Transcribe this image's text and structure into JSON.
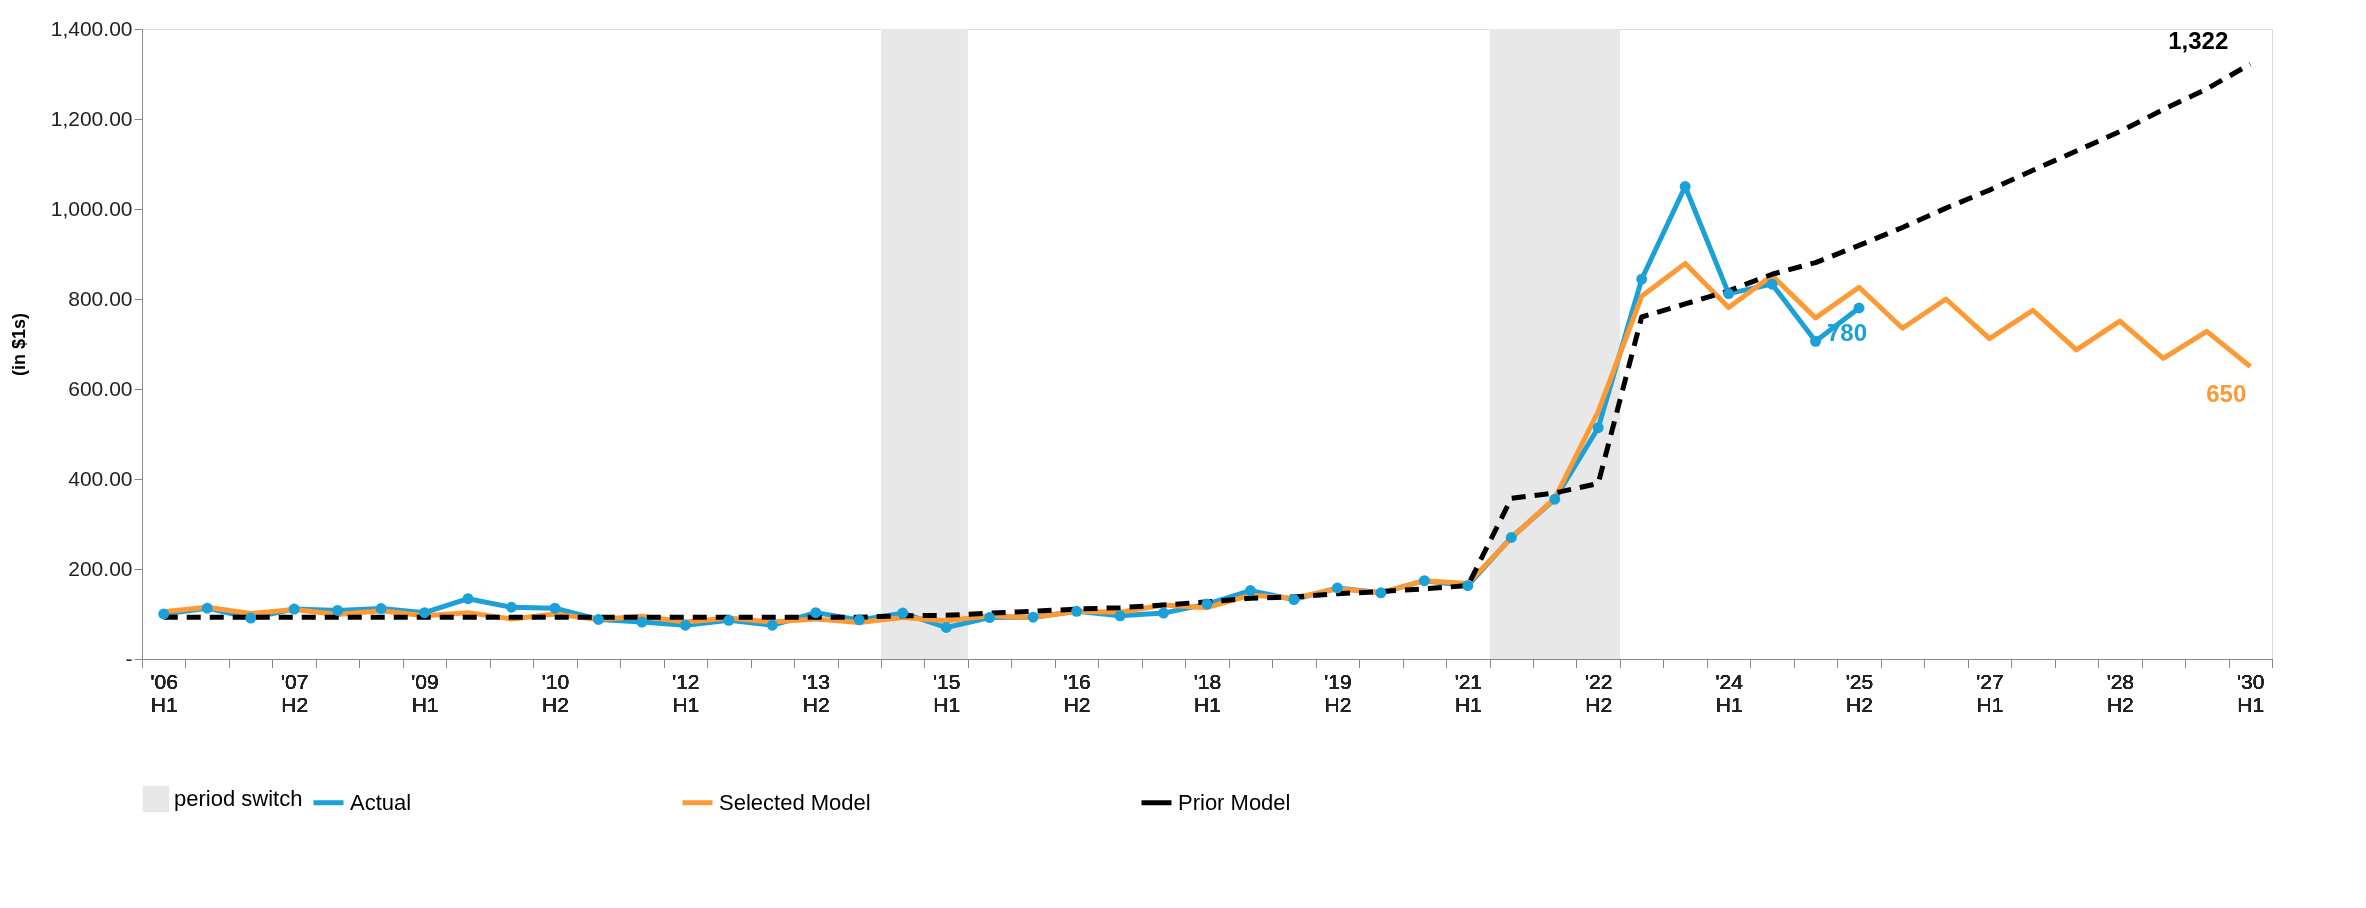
{
  "chart_data": {
    "type": "line",
    "ylabel": "(in $1s)",
    "categories": [
      "'06 H1",
      null,
      null,
      "'07 H2",
      null,
      null,
      "'09 H1",
      null,
      null,
      "'10 H2",
      null,
      null,
      "'12 H1",
      null,
      null,
      "'13 H2",
      null,
      null,
      "'15 H1",
      null,
      null,
      "'16 H2",
      null,
      null,
      "'18 H1",
      null,
      null,
      "'19 H2",
      null,
      null,
      "'21 H1",
      null,
      null,
      "'22 H2",
      null,
      null,
      "'24 H1",
      null,
      null,
      "'25 H2",
      null,
      null,
      "'27 H1",
      null,
      null,
      "'28 H2",
      null,
      null,
      "'30 H1"
    ],
    "series": [
      {
        "name": "Actual",
        "color": "#1ba1d8",
        "marker": "circle",
        "line_style": "solid",
        "values": [
          100,
          113,
          91,
          111,
          108,
          112,
          103,
          134,
          115,
          113,
          88,
          82,
          75,
          86,
          75,
          103,
          87,
          102,
          70,
          92,
          93,
          106,
          96,
          102,
          122,
          152,
          132,
          158,
          147,
          174,
          163,
          270,
          355,
          514,
          844,
          1050,
          812,
          833,
          706,
          780,
          null,
          null,
          null,
          null,
          null,
          null,
          null,
          null,
          null
        ],
        "value_labels": [
          null,
          null,
          null,
          null,
          null,
          null,
          null,
          null,
          null,
          null,
          null,
          null,
          null,
          null,
          null,
          null,
          null,
          null,
          null,
          null,
          null,
          null,
          null,
          null,
          null,
          null,
          null,
          null,
          null,
          null,
          null,
          null,
          null,
          null,
          null,
          null,
          null,
          null,
          null,
          "780",
          null,
          null,
          null,
          null,
          null,
          null,
          null,
          null,
          null
        ]
      },
      {
        "name": "Selected Model",
        "color": "#fd9a35",
        "marker": "none",
        "line_style": "solid",
        "values": [
          105,
          115,
          101,
          110,
          99,
          107,
          96,
          103,
          89,
          100,
          88,
          95,
          82,
          91,
          82,
          89,
          81,
          92,
          85,
          96,
          92,
          106,
          104,
          120,
          114,
          142,
          135,
          156,
          147,
          174,
          168,
          269,
          357,
          550,
          806,
          879,
          781,
          852,
          758,
          826,
          735,
          800,
          712,
          775,
          687,
          751,
          668,
          728,
          650
        ],
        "value_labels": [
          null,
          null,
          null,
          null,
          null,
          null,
          null,
          null,
          null,
          null,
          null,
          null,
          null,
          null,
          null,
          null,
          null,
          null,
          null,
          null,
          null,
          null,
          null,
          null,
          null,
          null,
          null,
          null,
          null,
          null,
          null,
          null,
          null,
          null,
          null,
          null,
          null,
          null,
          null,
          null,
          null,
          null,
          null,
          null,
          null,
          null,
          null,
          null,
          "650"
        ]
      },
      {
        "name": "Prior Model",
        "color": "#000000",
        "marker": "none",
        "line_style": "dashed",
        "values": [
          93,
          93,
          93,
          93,
          93,
          93,
          93,
          93,
          93,
          93,
          93,
          93,
          93,
          93,
          93,
          93,
          93,
          96,
          97,
          102,
          106,
          111,
          114,
          120,
          127,
          135,
          138,
          145,
          150,
          156,
          163,
          357,
          369,
          390,
          760,
          789,
          818,
          855,
          881,
          919,
          959,
          1002,
          1042,
          1086,
          1129,
          1172,
          1221,
          1267,
          1322
        ],
        "value_labels": [
          null,
          null,
          null,
          null,
          null,
          null,
          null,
          null,
          null,
          null,
          null,
          null,
          null,
          null,
          null,
          null,
          null,
          null,
          null,
          null,
          null,
          null,
          null,
          null,
          null,
          null,
          null,
          null,
          null,
          null,
          null,
          null,
          null,
          null,
          null,
          null,
          null,
          null,
          null,
          null,
          null,
          null,
          null,
          null,
          null,
          null,
          null,
          null,
          "1,322"
        ]
      }
    ],
    "annotations": [
      "period switch"
    ],
    "ylim": [
      0,
      1400
    ],
    "yticks": [
      {
        "value": 0,
        "label": "-"
      },
      {
        "value": 200,
        "label": "200.00"
      },
      {
        "value": 400,
        "label": "400.00"
      },
      {
        "value": 600,
        "label": "600.00"
      },
      {
        "value": 800,
        "label": "800.00"
      },
      {
        "value": 1000,
        "label": "1,000.00"
      },
      {
        "value": 1200,
        "label": "1,200.00"
      },
      {
        "value": 1400,
        "label": "1,400.00"
      }
    ],
    "grid": false,
    "legend": "bottom"
  }
}
